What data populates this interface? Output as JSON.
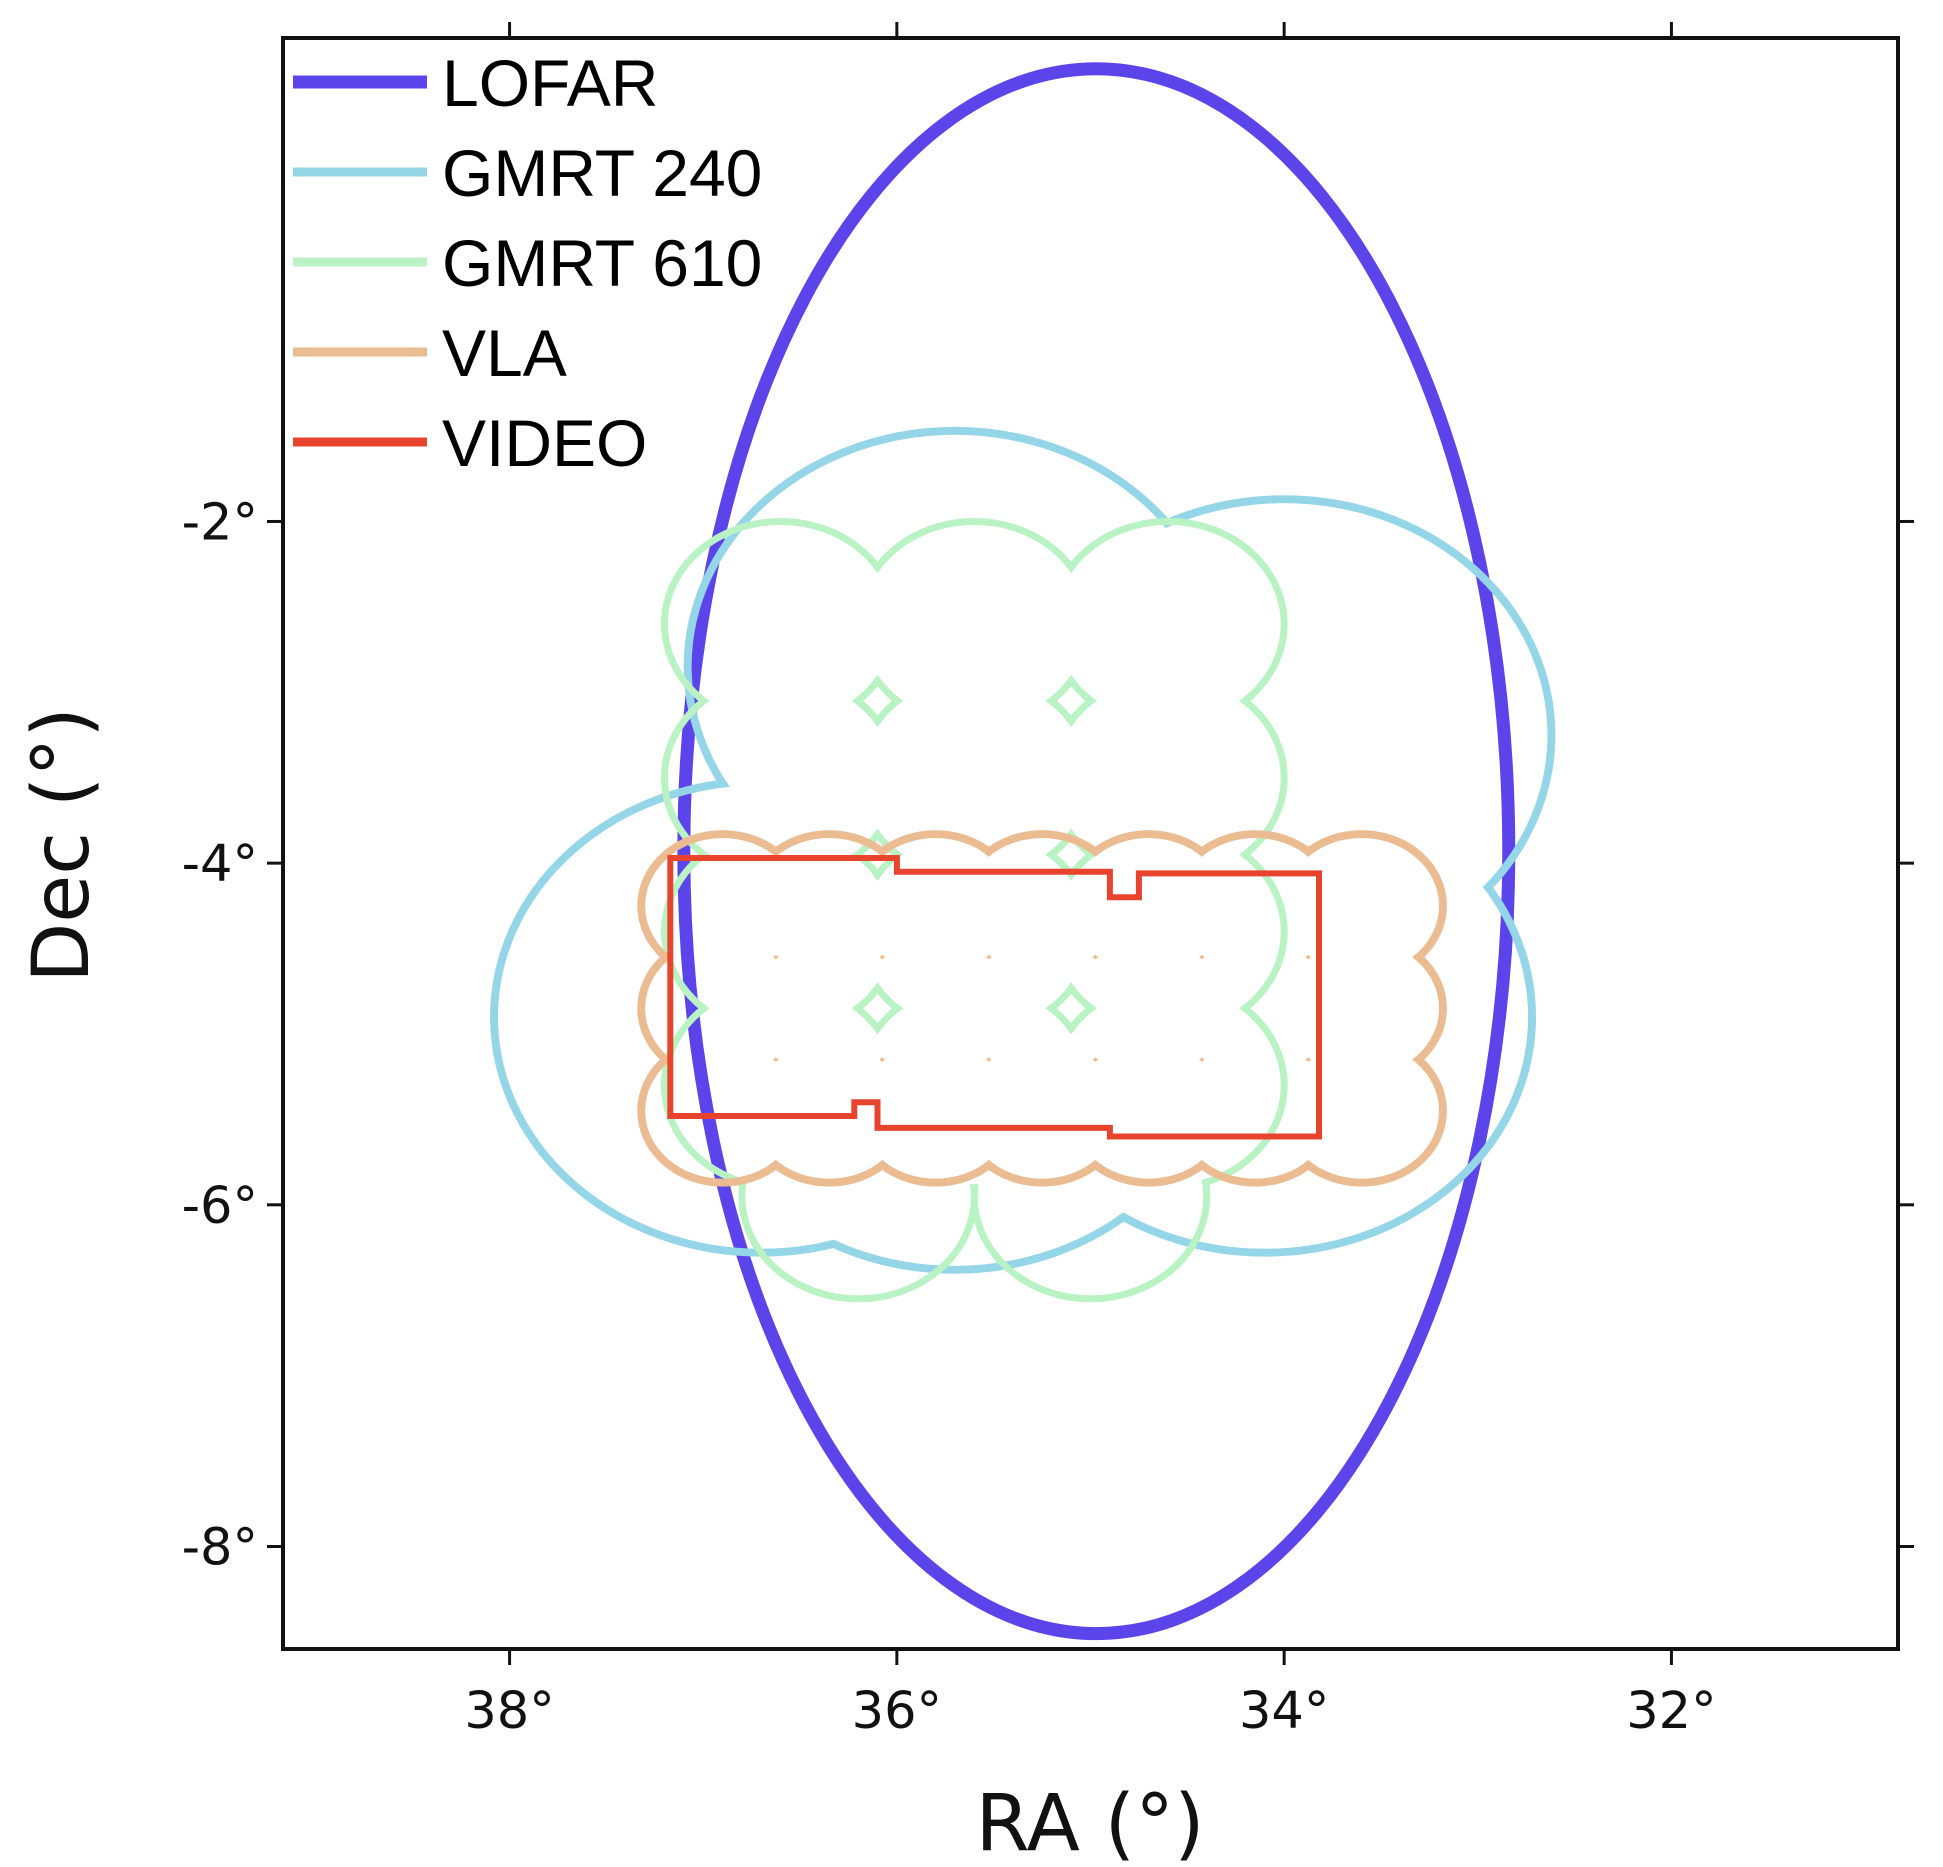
{
  "chart_data": {
    "type": "line",
    "title": "",
    "xlabel": "RA (°)",
    "ylabel": "Dec (°)",
    "xlim": [
      39.17,
      30.83
    ],
    "ylim": [
      -8.6,
      0.83
    ],
    "x_inverted": true,
    "xticks": [
      38,
      36,
      34,
      32
    ],
    "xtick_labels": [
      "38°",
      "36°",
      "34°",
      "32°"
    ],
    "yticks": [
      -2,
      -4,
      -6,
      -8
    ],
    "ytick_labels": [
      "-2°",
      "-4°",
      "-6°",
      "-8°"
    ],
    "grid": false,
    "legend_position": "top-left",
    "series": [
      {
        "name": "LOFAR",
        "color": "#5b44ea",
        "shape": "ellipse",
        "center": [
          34.97,
          -3.93
        ],
        "radii": [
          2.13,
          4.58
        ]
      },
      {
        "name": "GMRT 240",
        "color": "#94d6e8",
        "shape": "pointing-mosaic",
        "pointings": [
          [
            35.7,
            -2.85
          ],
          [
            34.0,
            -3.25
          ],
          [
            35.0,
            -4.5
          ],
          [
            36.7,
            -4.9
          ],
          [
            35.7,
            -5.0
          ],
          [
            34.1,
            -4.9
          ]
        ],
        "radius": 1.38
      },
      {
        "name": "GMRT 610",
        "color": "#b9f2c3",
        "shape": "pointing-mosaic",
        "pointings": [
          [
            36.6,
            -2.6
          ],
          [
            35.6,
            -2.6
          ],
          [
            34.6,
            -2.6
          ],
          [
            36.6,
            -3.5
          ],
          [
            35.6,
            -3.5
          ],
          [
            34.6,
            -3.5
          ],
          [
            36.6,
            -4.4
          ],
          [
            35.6,
            -4.4
          ],
          [
            34.6,
            -4.4
          ],
          [
            36.6,
            -5.3
          ],
          [
            35.6,
            -5.3
          ],
          [
            34.6,
            -5.3
          ],
          [
            36.2,
            -5.95
          ],
          [
            35.0,
            -5.95
          ]
        ],
        "radius": 0.6
      },
      {
        "name": "VLA",
        "color": "#ebbc91",
        "shape": "pointing-mosaic",
        "pointings": [
          [
            36.9,
            -4.25
          ],
          [
            36.35,
            -4.25
          ],
          [
            35.8,
            -4.25
          ],
          [
            35.25,
            -4.25
          ],
          [
            34.7,
            -4.25
          ],
          [
            34.15,
            -4.25
          ],
          [
            33.6,
            -4.25
          ],
          [
            36.9,
            -4.85
          ],
          [
            36.35,
            -4.85
          ],
          [
            35.8,
            -4.85
          ],
          [
            35.25,
            -4.85
          ],
          [
            34.7,
            -4.85
          ],
          [
            34.15,
            -4.85
          ],
          [
            33.6,
            -4.85
          ],
          [
            36.9,
            -5.45
          ],
          [
            36.35,
            -5.45
          ],
          [
            35.8,
            -5.45
          ],
          [
            35.25,
            -5.45
          ],
          [
            34.7,
            -5.45
          ],
          [
            34.15,
            -5.45
          ],
          [
            33.6,
            -5.45
          ]
        ],
        "radius": 0.42
      },
      {
        "name": "VIDEO",
        "color": "#e8432d",
        "shape": "polygon",
        "vertices": [
          [
            37.17,
            -3.97
          ],
          [
            36.0,
            -3.97
          ],
          [
            36.0,
            -4.05
          ],
          [
            34.9,
            -4.05
          ],
          [
            34.9,
            -4.2
          ],
          [
            34.75,
            -4.2
          ],
          [
            34.75,
            -4.06
          ],
          [
            33.82,
            -4.06
          ],
          [
            33.82,
            -5.6
          ],
          [
            34.9,
            -5.6
          ],
          [
            34.9,
            -5.55
          ],
          [
            36.1,
            -5.55
          ],
          [
            36.1,
            -5.4
          ],
          [
            36.22,
            -5.4
          ],
          [
            36.22,
            -5.48
          ],
          [
            37.17,
            -5.48
          ]
        ]
      }
    ]
  }
}
